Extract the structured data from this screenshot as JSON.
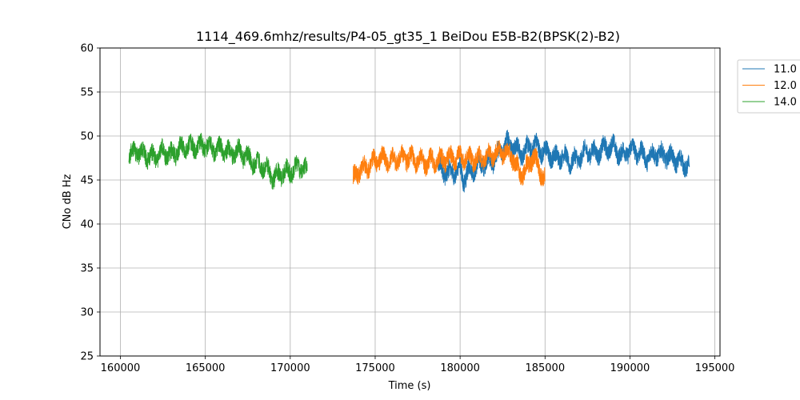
{
  "chart_data": {
    "type": "line",
    "title": "1114_469.6mhz/results/P4-05_gt35_1 BeiDou E5B-B2(BPSK(2)-B2)",
    "xlabel": "Time (s)",
    "ylabel": "CNo dB Hz",
    "xlim": [
      158800,
      195300
    ],
    "ylim": [
      25,
      60
    ],
    "xticks": [
      160000,
      165000,
      170000,
      175000,
      180000,
      185000,
      190000,
      195000
    ],
    "yticks": [
      25,
      30,
      35,
      40,
      45,
      50,
      55,
      60
    ],
    "grid": true,
    "legend_position": "upper-right-outside",
    "series": [
      {
        "name": "11.0",
        "color": "#1f77b4",
        "x": [
          178700,
          179000,
          179500,
          180000,
          180200,
          180500,
          181000,
          181500,
          182000,
          182500,
          182800,
          183200,
          183600,
          184000,
          184400,
          184800,
          185200,
          185600,
          186000,
          186500,
          187000,
          187500,
          188000,
          188500,
          189000,
          189500,
          190000,
          190500,
          191000,
          191500,
          192000,
          192500,
          193000,
          193500
        ],
        "y": [
          46.5,
          46.0,
          45.8,
          46.2,
          45.0,
          46.0,
          46.5,
          47.0,
          47.3,
          48.5,
          49.3,
          48.8,
          48.0,
          48.6,
          49.0,
          48.3,
          48.0,
          47.5,
          47.8,
          47.0,
          47.5,
          48.3,
          48.0,
          48.6,
          48.8,
          47.8,
          48.5,
          48.2,
          47.5,
          48.0,
          47.8,
          47.5,
          47.0,
          46.5
        ]
      },
      {
        "name": "12.0",
        "color": "#ff7f0e",
        "x": [
          173700,
          174000,
          174500,
          175000,
          175500,
          176000,
          176500,
          177000,
          177500,
          178000,
          178500,
          179000,
          179500,
          180000,
          180500,
          181000,
          181500,
          182000,
          182500,
          183000,
          183300,
          183600,
          184000,
          184300,
          184600,
          185000
        ],
        "y": [
          45.0,
          46.0,
          46.5,
          47.2,
          47.5,
          47.2,
          47.5,
          47.5,
          47.2,
          47.0,
          47.2,
          47.3,
          47.5,
          47.5,
          47.5,
          47.3,
          47.5,
          48.0,
          48.3,
          48.0,
          46.5,
          45.6,
          46.5,
          47.8,
          46.5,
          45.0
        ]
      },
      {
        "name": "14.0",
        "color": "#2ca02c",
        "x": [
          160500,
          161000,
          161500,
          162000,
          162500,
          163000,
          163500,
          164000,
          164500,
          165000,
          165500,
          166000,
          166500,
          167000,
          167500,
          168000,
          168500,
          169000,
          169500,
          170000,
          170500,
          171000
        ],
        "y": [
          47.8,
          48.3,
          47.8,
          47.5,
          48.2,
          47.8,
          48.5,
          48.8,
          48.8,
          49.0,
          48.5,
          48.5,
          48.0,
          48.2,
          47.5,
          46.8,
          46.5,
          45.2,
          45.8,
          46.0,
          46.5,
          46.0
        ]
      }
    ]
  }
}
